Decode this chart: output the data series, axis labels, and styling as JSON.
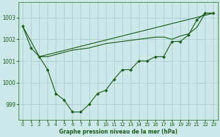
{
  "title": "Graphe pression niveau de la mer (hPa)",
  "background_color": "#cce8e8",
  "grid_color": "#aacccc",
  "line_color": "#1a5c1a",
  "xlim": [
    -0.5,
    23.5
  ],
  "ylim": [
    998.3,
    1003.7
  ],
  "yticks": [
    999,
    1000,
    1001,
    1002,
    1003
  ],
  "xticks": [
    0,
    1,
    2,
    3,
    4,
    5,
    6,
    7,
    8,
    9,
    10,
    11,
    12,
    13,
    14,
    15,
    16,
    17,
    18,
    19,
    20,
    21,
    22,
    23
  ],
  "series1_x": [
    0,
    1,
    2,
    3,
    4,
    5,
    6,
    7,
    8,
    9,
    10,
    11,
    12,
    13,
    14,
    15,
    16,
    17,
    18,
    19,
    20,
    21,
    22,
    23
  ],
  "series1_y": [
    1002.6,
    1001.6,
    1001.2,
    1000.6,
    999.5,
    999.2,
    998.65,
    998.65,
    999.0,
    999.5,
    999.65,
    1000.15,
    1000.6,
    1000.6,
    1001.0,
    1001.0,
    1001.2,
    1001.2,
    1001.9,
    1001.9,
    1002.2,
    1002.9,
    1003.2,
    1003.2
  ],
  "series2_x": [
    0,
    2,
    23
  ],
  "series2_y": [
    1002.6,
    1001.2,
    1003.2
  ],
  "series3_x": [
    2,
    3,
    4,
    5,
    6,
    7,
    8,
    9,
    10,
    11,
    12,
    13,
    14,
    15,
    16,
    17,
    18,
    19,
    20,
    21,
    22,
    23
  ],
  "series3_y": [
    1001.2,
    1001.2,
    1001.3,
    1001.4,
    1001.5,
    1001.55,
    1001.6,
    1001.7,
    1001.8,
    1001.85,
    1001.9,
    1001.95,
    1002.0,
    1002.05,
    1002.1,
    1002.1,
    1002.0,
    1002.15,
    1002.25,
    1002.55,
    1003.2,
    1003.2
  ]
}
